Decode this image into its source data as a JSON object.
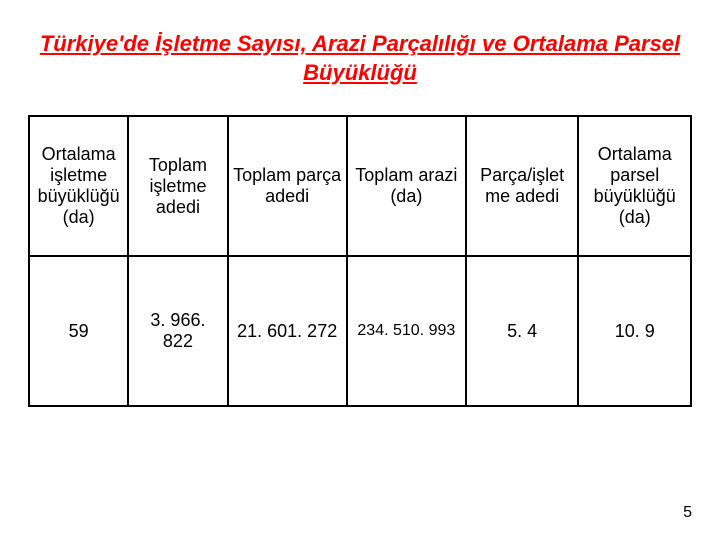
{
  "title": {
    "text": "Türkiye'de İşletme Sayısı, Arazi Parçalılığı ve Ortalama Parsel Büyüklüğü",
    "color": "#ff0000",
    "fontsize": 22
  },
  "table": {
    "border_color": "#000000",
    "header_fontsize": 18,
    "data_fontsize": 18,
    "columns": [
      {
        "label": "Ortalama işletme büyüklüğü (da)",
        "width": "15%"
      },
      {
        "label": "Toplam işletme adedi",
        "width": "15%"
      },
      {
        "label": "Toplam parça adedi",
        "width": "18%"
      },
      {
        "label": "Toplam arazi (da)",
        "width": "18%"
      },
      {
        "label": "Parça/işlet me adedi",
        "width": "17%"
      },
      {
        "label": "Ortalama parsel büyüklüğü (da)",
        "width": "17%"
      }
    ],
    "rows": [
      [
        "59",
        "3. 966. 822",
        "21. 601. 272",
        "234. 510. 993",
        "5. 4",
        "10. 9"
      ]
    ],
    "small_cell_index": 3,
    "small_cell_fontsize": 16
  },
  "page_number": {
    "value": "5",
    "fontsize": 16,
    "color": "#000000"
  }
}
